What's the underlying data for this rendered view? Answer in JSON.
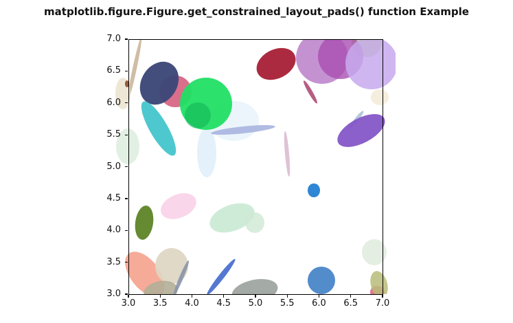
{
  "title": "matplotlib.figure.Figure.get_constrained_layout_pads() function Example",
  "colors": {
    "background": "#ffffff",
    "spine": "#000000",
    "title_color": "#111111",
    "tick_color": "#111111"
  },
  "chart_data": {
    "type": "scatter",
    "title": "matplotlib.figure.Figure.get_constrained_layout_pads() function Example",
    "xlabel": "",
    "ylabel": "",
    "xlim": [
      3.0,
      7.0
    ],
    "ylim": [
      3.0,
      7.0
    ],
    "grid": false,
    "legend": "none",
    "xticks": [
      {
        "value": 3.0,
        "label": "3.0"
      },
      {
        "value": 3.5,
        "label": "3.5"
      },
      {
        "value": 4.0,
        "label": "4.0"
      },
      {
        "value": 4.5,
        "label": "4.5"
      },
      {
        "value": 5.0,
        "label": "5.0"
      },
      {
        "value": 5.5,
        "label": "5.5"
      },
      {
        "value": 6.0,
        "label": "6.0"
      },
      {
        "value": 6.5,
        "label": "6.5"
      },
      {
        "value": 7.0,
        "label": "7.0"
      }
    ],
    "yticks": [
      {
        "value": 3.0,
        "label": "3.0"
      },
      {
        "value": 3.5,
        "label": "3.5"
      },
      {
        "value": 4.0,
        "label": "4.0"
      },
      {
        "value": 4.5,
        "label": "4.5"
      },
      {
        "value": 5.0,
        "label": "5.0"
      },
      {
        "value": 5.5,
        "label": "5.5"
      },
      {
        "value": 6.0,
        "label": "6.0"
      },
      {
        "value": 6.5,
        "label": "6.5"
      },
      {
        "value": 7.0,
        "label": "7.0"
      }
    ],
    "ellipses": [
      {
        "name": "tan-thin-line",
        "x": 3.1,
        "y": 6.54,
        "w": 0.06,
        "h": 0.99,
        "rot": 12,
        "color": "#c8b195",
        "alpha": 0.85
      },
      {
        "name": "cream-left-ellipse",
        "x": 2.91,
        "y": 6.15,
        "w": 0.24,
        "h": 0.5,
        "rot": 0,
        "color": "#ece4d2",
        "alpha": 0.9
      },
      {
        "name": "brown-dot",
        "x": 2.98,
        "y": 6.3,
        "w": 0.07,
        "h": 0.11,
        "rot": 0,
        "color": "#8a4a30",
        "alpha": 0.9
      },
      {
        "name": "rose-circle",
        "x": 3.74,
        "y": 6.18,
        "w": 0.5,
        "h": 0.5,
        "rot": 0,
        "color": "#d65f80",
        "alpha": 0.9
      },
      {
        "name": "navy-ellipse",
        "x": 3.48,
        "y": 6.31,
        "w": 0.56,
        "h": 0.71,
        "rot": 32,
        "color": "#3d4878",
        "alpha": 0.97
      },
      {
        "name": "teal-ellipse",
        "x": 3.48,
        "y": 5.6,
        "w": 0.28,
        "h": 0.97,
        "rot": -30,
        "color": "#3fc3cb",
        "alpha": 0.92
      },
      {
        "name": "pale-green-left",
        "x": 2.99,
        "y": 5.32,
        "w": 0.37,
        "h": 0.56,
        "rot": 0,
        "color": "#d9ecdc",
        "alpha": 0.8
      },
      {
        "name": "pale-blue-big",
        "x": 4.66,
        "y": 5.72,
        "w": 0.78,
        "h": 0.63,
        "rot": 0,
        "color": "#e6f2fa",
        "alpha": 0.8
      },
      {
        "name": "pale-blue-vertical",
        "x": 4.23,
        "y": 5.22,
        "w": 0.3,
        "h": 0.78,
        "rot": 0,
        "color": "#ddeefa",
        "alpha": 0.8
      },
      {
        "name": "periwinkle-line",
        "x": 4.81,
        "y": 5.58,
        "w": 1.02,
        "h": 0.11,
        "rot": -6,
        "color": "#a9b5df",
        "alpha": 0.9
      },
      {
        "name": "bright-green-circle",
        "x": 4.22,
        "y": 5.99,
        "w": 0.82,
        "h": 0.82,
        "rot": 0,
        "color": "#21df64",
        "alpha": 0.95
      },
      {
        "name": "green-inner-circle",
        "x": 4.09,
        "y": 5.8,
        "w": 0.41,
        "h": 0.41,
        "rot": 0,
        "color": "#12b258",
        "alpha": 0.55
      },
      {
        "name": "crimson-ellipse",
        "x": 5.32,
        "y": 6.61,
        "w": 0.65,
        "h": 0.45,
        "rot": -27,
        "color": "#a81f35",
        "alpha": 0.95
      },
      {
        "name": "orchid-circle",
        "x": 6.05,
        "y": 6.71,
        "w": 0.82,
        "h": 0.82,
        "rot": 0,
        "color": "#b677c6",
        "alpha": 0.8
      },
      {
        "name": "yellowgreen-circle",
        "x": 6.75,
        "y": 6.95,
        "w": 0.48,
        "h": 0.47,
        "rot": 0,
        "color": "#bccf79",
        "alpha": 0.9
      },
      {
        "name": "magenta-circle",
        "x": 6.34,
        "y": 6.73,
        "w": 0.71,
        "h": 0.71,
        "rot": 0,
        "color": "#a94fb2",
        "alpha": 0.8
      },
      {
        "name": "lavender-circle",
        "x": 6.83,
        "y": 6.62,
        "w": 0.82,
        "h": 0.82,
        "rot": 0,
        "color": "#c7a9ee",
        "alpha": 0.85
      },
      {
        "name": "magenta-thin-line",
        "x": 5.86,
        "y": 6.17,
        "w": 0.06,
        "h": 0.41,
        "rot": -30,
        "color": "#b04a76",
        "alpha": 0.9
      },
      {
        "name": "cream-right-blob",
        "x": 6.96,
        "y": 6.09,
        "w": 0.28,
        "h": 0.24,
        "rot": 0,
        "color": "#f4ecda",
        "alpha": 0.9
      },
      {
        "name": "lightblue-thin-line",
        "x": 6.59,
        "y": 5.74,
        "w": 0.06,
        "h": 0.35,
        "rot": 38,
        "color": "#afc2da",
        "alpha": 0.9
      },
      {
        "name": "purple-right-ellipse",
        "x": 6.66,
        "y": 5.57,
        "w": 0.82,
        "h": 0.39,
        "rot": -28,
        "color": "#8152c6",
        "alpha": 0.92
      },
      {
        "name": "mauve-vertical-line",
        "x": 5.5,
        "y": 5.2,
        "w": 0.06,
        "h": 0.71,
        "rot": -5,
        "color": "#d4aec8",
        "alpha": 0.75
      },
      {
        "name": "light-pink-ellipse",
        "x": 3.79,
        "y": 4.38,
        "w": 0.58,
        "h": 0.37,
        "rot": -22,
        "color": "#fad2e8",
        "alpha": 0.9
      },
      {
        "name": "olive-ellipse",
        "x": 3.25,
        "y": 4.12,
        "w": 0.28,
        "h": 0.54,
        "rot": 8,
        "color": "#5d8426",
        "alpha": 0.95
      },
      {
        "name": "mint-ellipse",
        "x": 4.64,
        "y": 4.2,
        "w": 0.74,
        "h": 0.41,
        "rot": -20,
        "color": "#c6e7d1",
        "alpha": 0.85
      },
      {
        "name": "pale-green-blob",
        "x": 4.99,
        "y": 4.12,
        "w": 0.3,
        "h": 0.32,
        "rot": 0,
        "color": "#cfe9d4",
        "alpha": 0.8
      },
      {
        "name": "small-blue-dot",
        "x": 5.92,
        "y": 4.63,
        "w": 0.19,
        "h": 0.22,
        "rot": 0,
        "color": "#2e86d4",
        "alpha": 1.0
      },
      {
        "name": "salmon-ellipse",
        "x": 3.26,
        "y": 3.31,
        "w": 0.45,
        "h": 0.82,
        "rot": -38,
        "color": "#f5a28d",
        "alpha": 0.9
      },
      {
        "name": "beige-circle",
        "x": 3.68,
        "y": 3.44,
        "w": 0.52,
        "h": 0.56,
        "rot": 0,
        "color": "#ded6c3",
        "alpha": 0.92
      },
      {
        "name": "khaki-bottom-ellipse",
        "x": 3.51,
        "y": 3.04,
        "w": 0.54,
        "h": 0.32,
        "rot": -10,
        "color": "#b3ae97",
        "alpha": 0.9
      },
      {
        "name": "grayblue-thin-line",
        "x": 3.83,
        "y": 3.26,
        "w": 0.06,
        "h": 0.58,
        "rot": 23,
        "color": "#8a93a8",
        "alpha": 0.9
      },
      {
        "name": "blue-thin-line",
        "x": 4.46,
        "y": 3.27,
        "w": 0.09,
        "h": 0.71,
        "rot": 38,
        "color": "#4169cd",
        "alpha": 0.9
      },
      {
        "name": "gray-bottom-ellipse",
        "x": 4.99,
        "y": 3.04,
        "w": 0.74,
        "h": 0.37,
        "rot": -12,
        "color": "#9aa19b",
        "alpha": 0.9
      },
      {
        "name": "big-blue-circle",
        "x": 6.04,
        "y": 3.22,
        "w": 0.43,
        "h": 0.43,
        "rot": 0,
        "color": "#4a86c8",
        "alpha": 0.95
      },
      {
        "name": "pale-green-right",
        "x": 6.87,
        "y": 3.66,
        "w": 0.39,
        "h": 0.41,
        "rot": 0,
        "color": "#e2ece0",
        "alpha": 0.9
      },
      {
        "name": "pink-corner-blob",
        "x": 6.92,
        "y": 3.03,
        "w": 0.22,
        "h": 0.19,
        "rot": 0,
        "color": "#e06888",
        "alpha": 0.9
      },
      {
        "name": "olive-corner-ellipse",
        "x": 6.95,
        "y": 3.15,
        "w": 0.26,
        "h": 0.43,
        "rot": -15,
        "color": "#b8bc78",
        "alpha": 0.85
      }
    ]
  }
}
